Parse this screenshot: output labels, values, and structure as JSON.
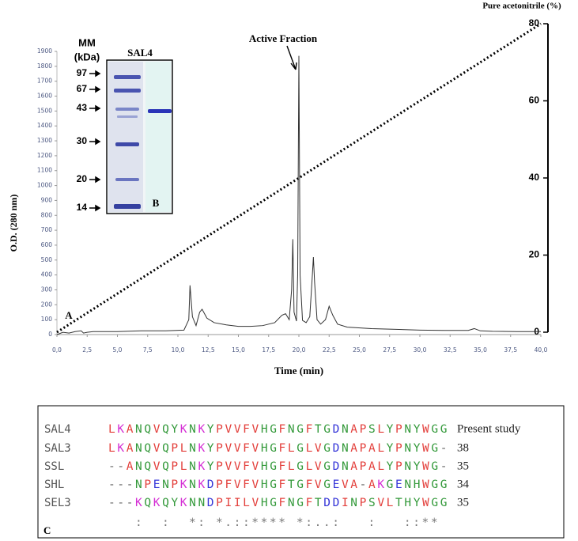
{
  "chart_data": {
    "type": "line",
    "ylabel": "O.D. (280 nm)",
    "xlabel": "Time (min)",
    "y2label": "Pure acetonitrile (%)",
    "annotation": "Active Fraction",
    "panel": "A",
    "xlim": [
      0,
      40
    ],
    "xticks": [
      {
        "value": 0,
        "label": "0,0"
      },
      {
        "value": 2.5,
        "label": "2,5"
      },
      {
        "value": 5,
        "label": "5,0"
      },
      {
        "value": 7.5,
        "label": "7,5"
      },
      {
        "value": 10,
        "label": "10,0"
      },
      {
        "value": 12.5,
        "label": "12,5"
      },
      {
        "value": 15,
        "label": "15,0"
      },
      {
        "value": 17.5,
        "label": "17,5"
      },
      {
        "value": 20,
        "label": "20,0"
      },
      {
        "value": 22.5,
        "label": "22,5"
      },
      {
        "value": 25,
        "label": "25,0"
      },
      {
        "value": 27.5,
        "label": "27,5"
      },
      {
        "value": 30,
        "label": "30,0"
      },
      {
        "value": 32.5,
        "label": "32,5"
      },
      {
        "value": 35,
        "label": "35,0"
      },
      {
        "value": 37.5,
        "label": "37,5"
      },
      {
        "value": 40,
        "label": "40,0"
      }
    ],
    "ylim": [
      0,
      1900
    ],
    "yticks": [
      0,
      100,
      200,
      300,
      400,
      500,
      600,
      700,
      800,
      900,
      1000,
      1100,
      1200,
      1300,
      1400,
      1500,
      1600,
      1700,
      1800,
      1900
    ],
    "y2lim": [
      0,
      80
    ],
    "y2ticks": [
      0,
      20,
      40,
      60,
      80
    ],
    "series": [
      {
        "color": "#333333",
        "x": [
          0,
          0.5,
          1,
          1.5,
          2,
          2.2,
          2.5,
          3,
          5,
          7,
          9,
          10.5,
          10.9,
          11.0,
          11.2,
          11.5,
          11.8,
          12.0,
          12.4,
          13,
          14,
          15,
          16,
          17,
          18,
          18.6,
          18.9,
          19.2,
          19.4,
          19.5,
          19.6,
          19.8,
          19.9,
          20.0,
          20.1,
          20.3,
          20.6,
          20.9,
          21.1,
          21.2,
          21.3,
          21.5,
          21.8,
          22.2,
          22.5,
          22.8,
          23.2,
          24,
          26,
          28,
          30,
          32,
          34,
          34.5,
          35,
          36,
          38,
          40
        ],
        "values": [
          0,
          15,
          10,
          20,
          25,
          10,
          15,
          20,
          20,
          25,
          25,
          30,
          100,
          330,
          120,
          60,
          150,
          170,
          110,
          80,
          65,
          55,
          55,
          60,
          80,
          130,
          140,
          100,
          300,
          640,
          150,
          90,
          400,
          1870,
          400,
          95,
          80,
          120,
          380,
          520,
          350,
          100,
          70,
          100,
          190,
          130,
          70,
          50,
          40,
          35,
          30,
          28,
          28,
          40,
          25,
          22,
          20,
          20
        ]
      },
      {
        "color": "#000000",
        "axis": "y2",
        "dotted": true,
        "x": [
          0,
          40
        ],
        "values": [
          0,
          80
        ]
      }
    ]
  },
  "gel": {
    "title": "MM",
    "unit": "(kDa)",
    "lane_label": "SAL4",
    "markers": [
      "97",
      "67",
      "43",
      "30",
      "20",
      "14"
    ],
    "panel": "B"
  },
  "alignment": {
    "panel": "C",
    "residue_colors": {
      "AVFPMILW": "#e3403c",
      "DE": "#3535d8",
      "RK": "#d42ed4",
      "STYHCNGQ": "#33993a",
      "-": "#666666"
    },
    "rows": [
      {
        "name": "SAL4",
        "sequence": "LKANQVQYKNKYPVVFVHGFNGFTGDNAPSLYPNYWGG",
        "note": "Present study"
      },
      {
        "name": "SAL3",
        "sequence": "LKANQVQPLNKYPVVFVHGFLGLVGDNAPALYPNYWG-",
        "note": "38"
      },
      {
        "name": "SSL",
        "sequence": "--ANQVQPLNKYPVVFVHGFLGLVGDNAPALYPNYWG-",
        "note": "35"
      },
      {
        "name": "SHL",
        "sequence": "---NPENPKNKDPFVFVHGFTGFVGEVA-AKGENHWGG",
        "note": "34"
      },
      {
        "name": "SEL3",
        "sequence": "---KQKQYKNNDPIILVHGFNGFTDDINPSVLTHYWGG",
        "note": "35"
      }
    ],
    "conservation": "   :  :  *: *.::**** *:..:   :   ::**"
  }
}
